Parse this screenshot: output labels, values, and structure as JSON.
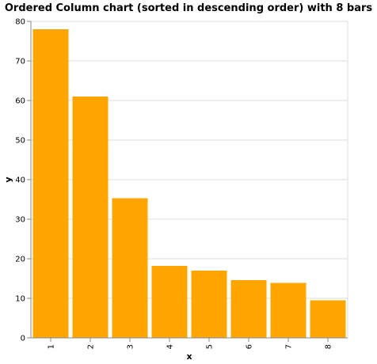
{
  "chart_data": {
    "type": "bar",
    "title": "Ordered Column chart (sorted in descending order) with 8 bars",
    "xlabel": "x",
    "ylabel": "y",
    "categories": [
      "1",
      "2",
      "3",
      "4",
      "5",
      "6",
      "7",
      "8"
    ],
    "values": [
      78,
      61,
      35.3,
      18.2,
      17,
      14.6,
      13.9,
      9.5
    ],
    "ylim": [
      0,
      80
    ],
    "yticks": [
      0,
      10,
      20,
      30,
      40,
      50,
      60,
      70,
      80
    ],
    "grid": true,
    "legend": "none",
    "bar_color": "#FFA500"
  }
}
